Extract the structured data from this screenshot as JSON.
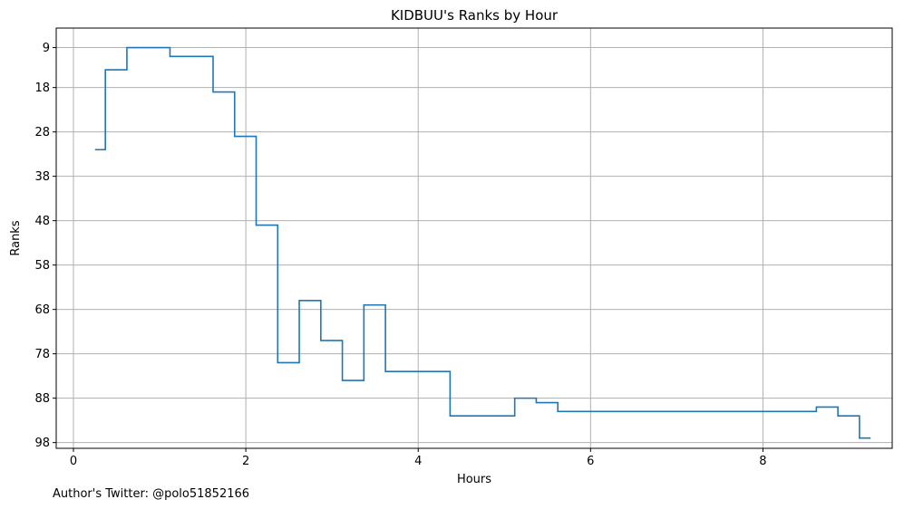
{
  "footer": {
    "note": "Author's Twitter: @polo51852166"
  },
  "chart_data": {
    "type": "line",
    "step": "post",
    "title": "KIDBUU's Ranks by Hour",
    "xlabel": "Hours",
    "ylabel": "Ranks",
    "xlim": [
      -0.2,
      9.5
    ],
    "ylim": [
      99.3,
      4.6
    ],
    "y_inverted": true,
    "x_ticks": [
      0,
      2,
      4,
      6,
      8
    ],
    "x_tick_labels": [
      "0",
      "2",
      "4",
      "6",
      "8"
    ],
    "y_ticks": [
      9,
      18,
      28,
      38,
      48,
      58,
      68,
      78,
      88,
      98
    ],
    "y_tick_labels": [
      "9",
      "18",
      "28",
      "38",
      "48",
      "58",
      "68",
      "78",
      "88",
      "98"
    ],
    "grid": true,
    "line_color": "#1f77b4",
    "series": [
      {
        "x": [
          0.25,
          0.37,
          0.62,
          1.12,
          1.62,
          1.87,
          2.12,
          2.37,
          2.62,
          2.87,
          3.12,
          3.37,
          3.62,
          3.87,
          4.37,
          5.12,
          5.37,
          5.62,
          8.62,
          8.87,
          9.12,
          9.25
        ],
        "y": [
          32,
          14,
          9,
          11,
          19,
          29,
          49,
          80,
          66,
          75,
          84,
          67,
          82,
          82,
          92,
          88,
          89,
          91,
          90,
          92,
          97,
          97
        ]
      }
    ]
  }
}
